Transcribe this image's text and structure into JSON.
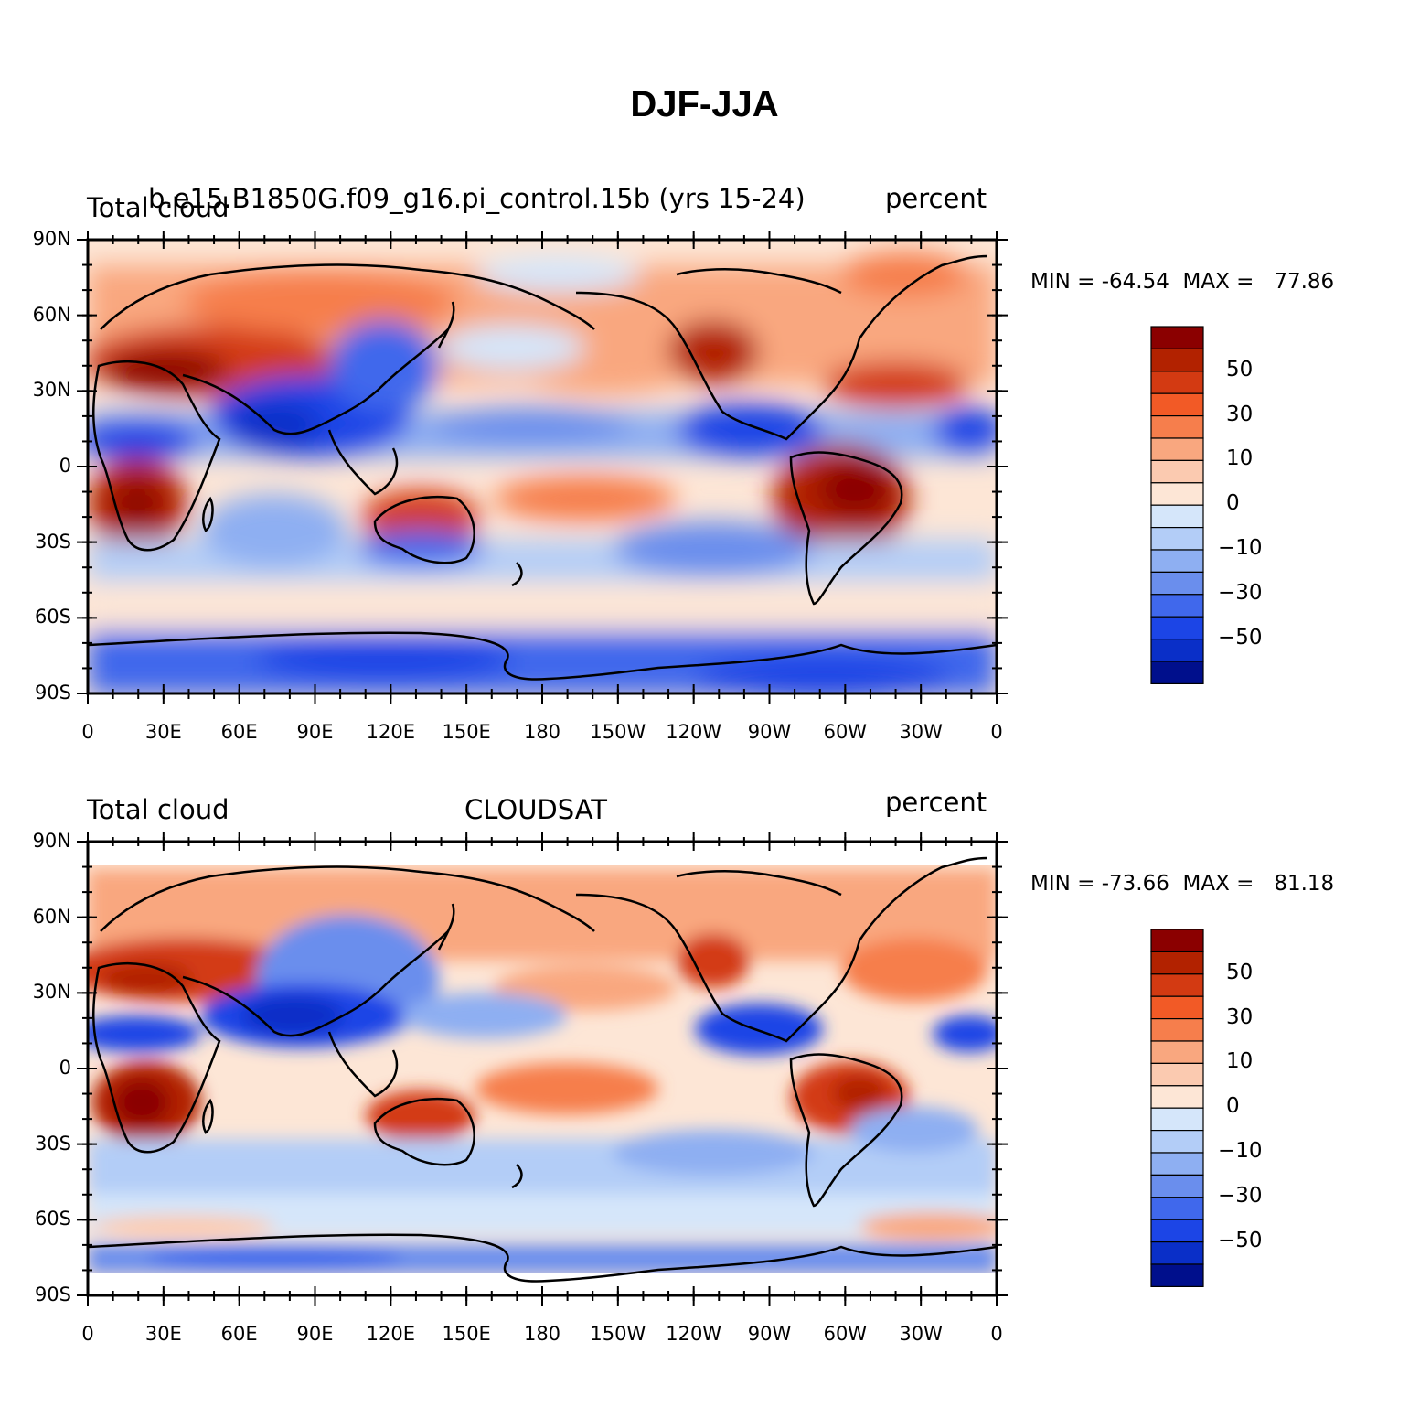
{
  "title": "DJF-JJA",
  "panels": [
    {
      "left_label": "Total cloud",
      "center_label": "b.e15.B1850G.f09_g16.pi_control.15b (yrs 15-24)",
      "right_label": "percent",
      "min_max": "MIN = -64.54  MAX =   77.86",
      "lat_ticks": [
        "90N",
        "60N",
        "30N",
        "0",
        "30S",
        "60S",
        "90S"
      ],
      "lon_ticks": [
        "0",
        "30E",
        "60E",
        "90E",
        "120E",
        "150E",
        "180",
        "150W",
        "120W",
        "90W",
        "60W",
        "30W",
        "0"
      ],
      "colorbar_labels": [
        "50",
        "30",
        "10",
        "0",
        "-10",
        "-30",
        "-50"
      ]
    },
    {
      "left_label": "Total cloud",
      "center_label": "CLOUDSAT",
      "right_label": "percent",
      "min_max": "MIN = -73.66  MAX =   81.18",
      "lat_ticks": [
        "90N",
        "60N",
        "30N",
        "0",
        "30S",
        "60S",
        "90S"
      ],
      "lon_ticks": [
        "0",
        "30E",
        "60E",
        "90E",
        "120E",
        "150E",
        "180",
        "150W",
        "120W",
        "90W",
        "60W",
        "30W",
        "0"
      ],
      "colorbar_labels": [
        "50",
        "30",
        "10",
        "0",
        "-10",
        "-30",
        "-50"
      ]
    }
  ],
  "colorbar_colors": [
    "#8b0000",
    "#b22200",
    "#d33a12",
    "#f25a26",
    "#f67e4c",
    "#f9a77f",
    "#fbcab0",
    "#fde6d6",
    "#d5e6fa",
    "#b3cdf7",
    "#8eaff2",
    "#6a8eed",
    "#4068ec",
    "#1c45e6",
    "#0a2fc8",
    "#000f8c"
  ],
  "colors": {
    "land_outline": "#000000",
    "frame": "#000000"
  }
}
